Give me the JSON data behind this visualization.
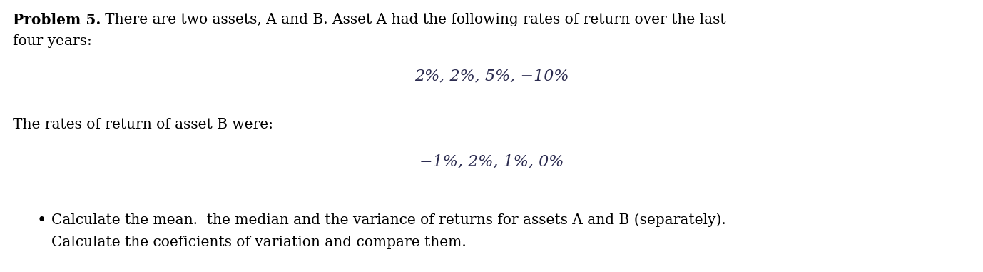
{
  "bg_color": "#ffffff",
  "problem_bold": "Problem 5.",
  "problem_rest": "   There are two assets, A and B. Asset A had the following rates of return over the last",
  "line2": "four years:",
  "asset_a_returns": "2%, 2%, 5%, −10%",
  "asset_b_label": "The rates of return of asset B were:",
  "asset_b_returns": "−1%, 2%, 1%, 0%",
  "bullet_line1": "Calculate the mean.  the median and the variance of returns for assets A and B (separately).",
  "bullet_line2": "Calculate the coeficients of variation and compare them.",
  "font_family": "serif",
  "main_fontsize": 14.5,
  "formula_fontsize": 16.0,
  "bold_fontsize": 14.5,
  "text_color": "#000000",
  "formula_color": "#2c2c50"
}
